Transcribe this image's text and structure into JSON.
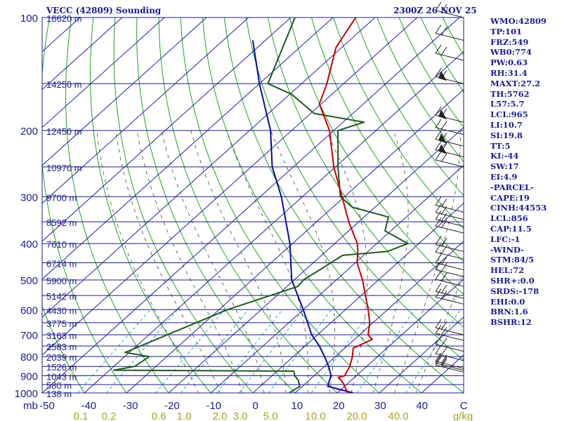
{
  "header": {
    "station": "VECC (42809) Sounding",
    "time": "2300Z 26 NOV 25"
  },
  "indices": [
    "WMO:42809",
    "TP:101",
    "FRZ:549",
    "WB0:774",
    "PW:0.63",
    "RH:31.4",
    "MAXT:27.2",
    "TH:5762",
    "L57:5.7",
    "LCL:965",
    "LI:10.7",
    "SI:19.8",
    "TT:5",
    "KI:-44",
    "SW:17",
    "EI:4.9",
    "-PARCEL-",
    "CAPE:19",
    "CINH:44553",
    "LCL:856",
    "CAP:11.5",
    "LFC:-1",
    "-WIND-",
    "STM:84/5",
    "HEL:72",
    "SHR+:0.0",
    "SRDS:-178",
    "EHI:0.0",
    "BRN:1.6",
    "BSHR:12"
  ],
  "colors": {
    "isobar": "#1c1c8c",
    "isotherm": "#2020a0",
    "dry_adiabat": "#22a022",
    "moist_adiabat": "#444444",
    "mixing_ratio": "#1aa0dc",
    "temperature": "#c80000",
    "dewpoint": "#1e5a1e",
    "parcel": "#0a0aa0",
    "height_label": "#1c1c8c",
    "mixing_label": "#a8a020",
    "wind": "#222222"
  },
  "chart_data": {
    "type": "skew-t log-p",
    "pressure_axis": {
      "unit": "mb",
      "range": [
        1000,
        100
      ],
      "ticks": [
        1000,
        900,
        800,
        700,
        600,
        500,
        400,
        300,
        200,
        100
      ]
    },
    "temperature_axis": {
      "unit": "C",
      "range": [
        -50,
        50
      ],
      "ticks": [
        "-50",
        "-40",
        "-30",
        "-20",
        "-10",
        "0",
        "10",
        "20",
        "30",
        "40",
        "C"
      ]
    },
    "mixing_ratio_axis": {
      "unit": "g/kg",
      "ticks": [
        "0.1",
        "0.2",
        "0.6",
        "1.0",
        "2.0",
        "3.0",
        "5.0",
        "10.0",
        "20.0",
        "40.0",
        "g/kg"
      ]
    },
    "height_labels": [
      {
        "p": 100,
        "text": "16620 m"
      },
      {
        "p": 150,
        "text": "14250 m"
      },
      {
        "p": 200,
        "text": "12450 m"
      },
      {
        "p": 250,
        "text": "10970 m"
      },
      {
        "p": 300,
        "text": "9700 m"
      },
      {
        "p": 350,
        "text": "8592 m"
      },
      {
        "p": 400,
        "text": "7610 m"
      },
      {
        "p": 450,
        "text": "6714 m"
      },
      {
        "p": 500,
        "text": "5900 m"
      },
      {
        "p": 550,
        "text": "5142 m"
      },
      {
        "p": 600,
        "text": "4430 m"
      },
      {
        "p": 650,
        "text": "3775 m"
      },
      {
        "p": 700,
        "text": "3163 m"
      },
      {
        "p": 750,
        "text": "2583 m"
      },
      {
        "p": 800,
        "text": "2039 m"
      },
      {
        "p": 850,
        "text": "1526 m"
      },
      {
        "p": 900,
        "text": "1043 m"
      },
      {
        "p": 950,
        "text": "580 m"
      },
      {
        "p": 1000,
        "text": "138 m"
      }
    ],
    "temperature": [
      [
        1000,
        22.6
      ],
      [
        970,
        20.6
      ],
      [
        950,
        19.4
      ],
      [
        925,
        17.6
      ],
      [
        910,
        16.2
      ],
      [
        900,
        17.2
      ],
      [
        850,
        16.0
      ],
      [
        800,
        14.0
      ],
      [
        760,
        12.0
      ],
      [
        720,
        14.2
      ],
      [
        700,
        12.0
      ],
      [
        650,
        9.2
      ],
      [
        600,
        5.4
      ],
      [
        550,
        1.0
      ],
      [
        500,
        -3.8
      ],
      [
        450,
        -9.6
      ],
      [
        420,
        -12.4
      ],
      [
        400,
        -14.6
      ],
      [
        350,
        -22.4
      ],
      [
        300,
        -30.6
      ],
      [
        250,
        -40.4
      ],
      [
        200,
        -51.0
      ],
      [
        170,
        -60.4
      ],
      [
        150,
        -64.0
      ],
      [
        120,
        -71.4
      ],
      [
        100,
        -74.6
      ]
    ],
    "dewpoint": [
      [
        1000,
        8.6
      ],
      [
        990,
        8.8
      ],
      [
        960,
        9.4
      ],
      [
        925,
        7.4
      ],
      [
        900,
        5.4
      ],
      [
        875,
        4.0
      ],
      [
        870,
        -39.0
      ],
      [
        850,
        -35.0
      ],
      [
        800,
        -34.2
      ],
      [
        780,
        -41.0
      ],
      [
        600,
        -28.0
      ],
      [
        520,
        -17.4
      ],
      [
        500,
        -17.8
      ],
      [
        470,
        -16.6
      ],
      [
        430,
        -15.0
      ],
      [
        420,
        -5.4
      ],
      [
        400,
        -2.6
      ],
      [
        370,
        -11.4
      ],
      [
        340,
        -14.2
      ],
      [
        320,
        -25.4
      ],
      [
        300,
        -31.0
      ],
      [
        250,
        -39.4
      ],
      [
        200,
        -49.0
      ],
      [
        190,
        -45.0
      ],
      [
        180,
        -59.2
      ],
      [
        160,
        -69.6
      ],
      [
        150,
        -78.0
      ],
      [
        100,
        -89.0
      ]
    ],
    "parcel": [
      [
        1000,
        23.8
      ],
      [
        960,
        16.0
      ],
      [
        930,
        15.0
      ],
      [
        900,
        14.0
      ],
      [
        850,
        11.0
      ],
      [
        800,
        7.4
      ],
      [
        750,
        3.4
      ],
      [
        700,
        -1.4
      ],
      [
        600,
        -10.0
      ],
      [
        500,
        -20.6
      ],
      [
        400,
        -30.6
      ],
      [
        300,
        -45.0
      ],
      [
        250,
        -55.0
      ],
      [
        200,
        -65.0
      ],
      [
        150,
        -80.0
      ],
      [
        115,
        -93.0
      ]
    ]
  }
}
